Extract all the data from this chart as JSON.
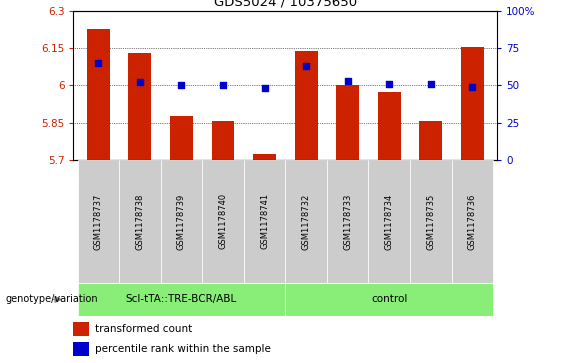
{
  "title": "GDS5024 / 10375650",
  "samples": [
    "GSM1178737",
    "GSM1178738",
    "GSM1178739",
    "GSM1178740",
    "GSM1178741",
    "GSM1178732",
    "GSM1178733",
    "GSM1178734",
    "GSM1178735",
    "GSM1178736"
  ],
  "bar_values": [
    6.225,
    6.13,
    5.875,
    5.855,
    5.725,
    6.14,
    6.0,
    5.975,
    5.855,
    6.155
  ],
  "dot_values_pct": [
    65,
    52,
    50,
    50,
    48,
    63,
    53,
    51,
    51,
    49
  ],
  "ylim": [
    5.7,
    6.3
  ],
  "yticks": [
    5.7,
    5.85,
    6.0,
    6.15,
    6.3
  ],
  "ytick_labels": [
    "5.7",
    "5.85",
    "6",
    "6.15",
    "6.3"
  ],
  "y2lim": [
    0,
    100
  ],
  "y2ticks": [
    0,
    25,
    50,
    75,
    100
  ],
  "y2tick_labels": [
    "0",
    "25",
    "50",
    "75",
    "100%"
  ],
  "bar_color": "#cc2200",
  "dot_color": "#0000cc",
  "group1_label": "Scl-tTA::TRE-BCR/ABL",
  "group2_label": "control",
  "group1_count": 5,
  "group2_count": 5,
  "group_bg_color": "#88ee77",
  "sample_bg_color": "#cccccc",
  "legend_bar_label": "transformed count",
  "legend_dot_label": "percentile rank within the sample",
  "genotype_label": "genotype/variation",
  "ybaseline": 5.7,
  "bar_width": 0.55
}
